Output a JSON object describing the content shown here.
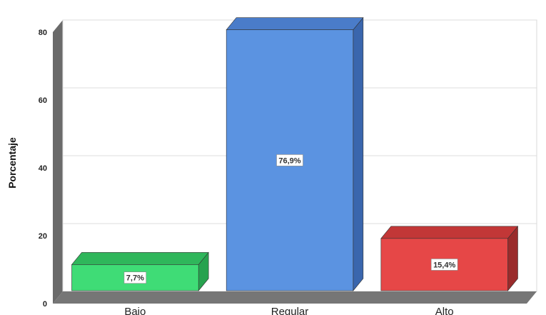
{
  "chart_data": {
    "type": "bar",
    "categories": [
      "Bajo",
      "Regular",
      "Alto"
    ],
    "values": [
      7.7,
      76.9,
      15.4
    ],
    "data_labels": [
      "7,7%",
      "76,9%",
      "15,4%"
    ],
    "ylabel": "Porcentaje",
    "yticks": [
      "0",
      "20",
      "40",
      "60",
      "80"
    ],
    "ylim": [
      0,
      80
    ],
    "grid": true,
    "colors": [
      "#3fdc76",
      "#5b93e1",
      "#e64747"
    ],
    "side_colors": [
      "#27a24f",
      "#3a66ad",
      "#9a2b2b"
    ],
    "top_colors": [
      "#2fb65b",
      "#4a7cc9",
      "#c23737"
    ]
  }
}
